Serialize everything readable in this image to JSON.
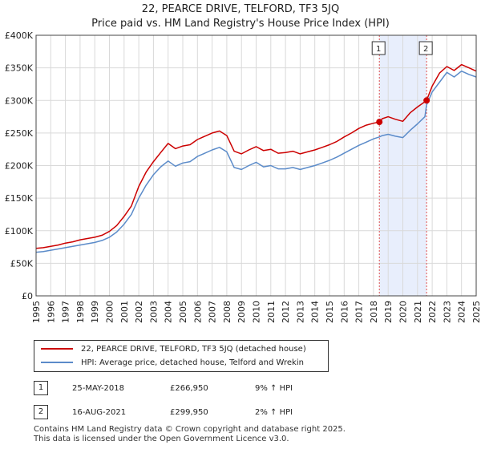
{
  "title_line1": "22, PEARCE DRIVE, TELFORD, TF3 5JQ",
  "title_line2": "Price paid vs. HM Land Registry's House Price Index (HPI)",
  "colors": {
    "property": "#cc0000",
    "hpi": "#5b8bc9",
    "shade": "#e8eefc",
    "marker_line": "#e05050"
  },
  "chart_data": {
    "type": "line",
    "xlim": [
      1995,
      2025
    ],
    "ylim": [
      0,
      400000
    ],
    "ytick_labels": [
      "£0",
      "£50K",
      "£100K",
      "£150K",
      "£200K",
      "£250K",
      "£300K",
      "£350K",
      "£400K"
    ],
    "ytick_values": [
      0,
      50000,
      100000,
      150000,
      200000,
      250000,
      300000,
      350000,
      400000
    ],
    "xtick_labels": [
      "1995",
      "1996",
      "1997",
      "1998",
      "1999",
      "2000",
      "2001",
      "2002",
      "2003",
      "2004",
      "2005",
      "2006",
      "2007",
      "2008",
      "2009",
      "2010",
      "2011",
      "2012",
      "2013",
      "2014",
      "2015",
      "2016",
      "2017",
      "2018",
      "2019",
      "2020",
      "2021",
      "2022",
      "2023",
      "2024",
      "2025"
    ],
    "grid": true,
    "shaded_range": [
      2018.4,
      2021.62
    ],
    "series": [
      {
        "name": "22, PEARCE DRIVE, TELFORD, TF3 5JQ (detached house)",
        "x": [
          1995,
          1995.5,
          1996,
          1996.5,
          1997,
          1997.5,
          1998,
          1998.5,
          1999,
          1999.5,
          2000,
          2000.5,
          2001,
          2001.5,
          2002,
          2002.5,
          2003,
          2003.5,
          2004,
          2004.5,
          2005,
          2005.5,
          2006,
          2006.5,
          2007,
          2007.5,
          2008,
          2008.5,
          2009,
          2009.5,
          2010,
          2010.5,
          2011,
          2011.5,
          2012,
          2012.5,
          2013,
          2013.5,
          2014,
          2014.5,
          2015,
          2015.5,
          2016,
          2016.5,
          2017,
          2017.5,
          2018,
          2018.4,
          2018.6,
          2019,
          2019.5,
          2020,
          2020.5,
          2021,
          2021.5,
          2021.62,
          2022,
          2022.5,
          2023,
          2023.5,
          2024,
          2024.5,
          2025
        ],
        "values": [
          73000,
          74000,
          76000,
          78000,
          81000,
          83000,
          86000,
          88000,
          90000,
          93000,
          99000,
          108000,
          122000,
          138000,
          168000,
          190000,
          206000,
          220000,
          234000,
          226000,
          230000,
          232000,
          240000,
          245000,
          250000,
          253000,
          246000,
          222000,
          218000,
          224000,
          229000,
          223000,
          225000,
          219000,
          220000,
          222000,
          218000,
          221000,
          224000,
          228000,
          232000,
          237000,
          244000,
          250000,
          257000,
          262000,
          265000,
          266950,
          272000,
          275000,
          271000,
          268000,
          281000,
          290000,
          298000,
          299950,
          322000,
          342000,
          352000,
          346000,
          355000,
          350000,
          345000
        ]
      },
      {
        "name": "HPI: Average price, detached house, Telford and Wrekin",
        "x": [
          1995,
          1995.5,
          1996,
          1996.5,
          1997,
          1997.5,
          1998,
          1998.5,
          1999,
          1999.5,
          2000,
          2000.5,
          2001,
          2001.5,
          2002,
          2002.5,
          2003,
          2003.5,
          2004,
          2004.5,
          2005,
          2005.5,
          2006,
          2006.5,
          2007,
          2007.5,
          2008,
          2008.5,
          2009,
          2009.5,
          2010,
          2010.5,
          2011,
          2011.5,
          2012,
          2012.5,
          2013,
          2013.5,
          2014,
          2014.5,
          2015,
          2015.5,
          2016,
          2016.5,
          2017,
          2017.5,
          2018,
          2018.4,
          2018.6,
          2019,
          2019.5,
          2020,
          2020.5,
          2021,
          2021.5,
          2021.62,
          2022,
          2022.5,
          2023,
          2023.5,
          2024,
          2024.5,
          2025
        ],
        "values": [
          67000,
          68000,
          70000,
          72000,
          74000,
          76000,
          78000,
          80000,
          82000,
          85000,
          90000,
          98000,
          110000,
          125000,
          150000,
          170000,
          186000,
          198000,
          207000,
          199000,
          204000,
          206000,
          214000,
          219000,
          224000,
          228000,
          221000,
          197000,
          194000,
          200000,
          205000,
          198000,
          200000,
          195000,
          195000,
          197000,
          194000,
          197000,
          200000,
          204000,
          208000,
          213000,
          219000,
          225000,
          231000,
          236000,
          241000,
          244000,
          246000,
          248000,
          245000,
          243000,
          254000,
          264000,
          275000,
          293000,
          313000,
          328000,
          343000,
          336000,
          345000,
          340000,
          336000
        ]
      }
    ],
    "annotations": [
      {
        "label": "1",
        "x": 2018.4,
        "y": 266950
      },
      {
        "label": "2",
        "x": 2021.62,
        "y": 299950
      }
    ]
  },
  "legend": {
    "property_label": "22, PEARCE DRIVE, TELFORD, TF3 5JQ (detached house)",
    "hpi_label": "HPI: Average price, detached house, Telford and Wrekin"
  },
  "transactions": [
    {
      "num": "1",
      "date": "25-MAY-2018",
      "price": "£266,950",
      "hpi": "9% ↑ HPI"
    },
    {
      "num": "2",
      "date": "16-AUG-2021",
      "price": "£299,950",
      "hpi": "2% ↑ HPI"
    }
  ],
  "footer_line1": "Contains HM Land Registry data © Crown copyright and database right 2025.",
  "footer_line2": "This data is licensed under the Open Government Licence v3.0."
}
